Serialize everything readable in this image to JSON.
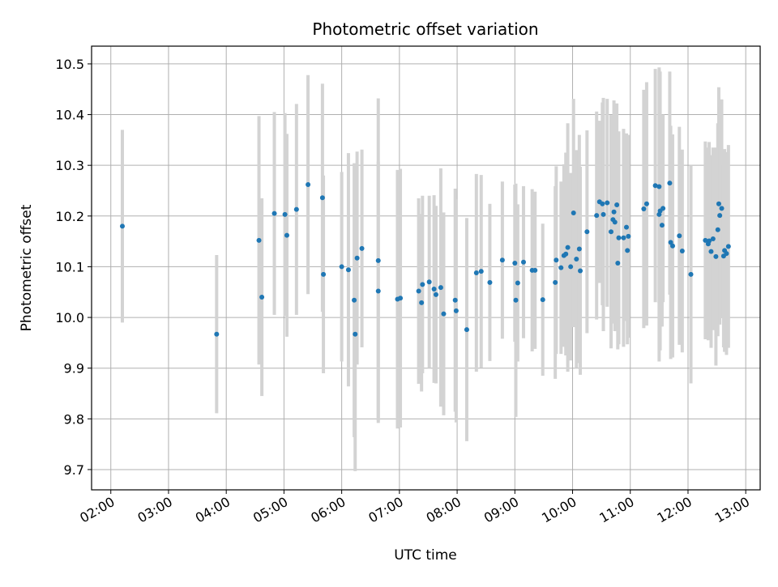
{
  "chart_data": {
    "type": "scatter",
    "title": "Photometric offset variation",
    "xlabel": "UTC time",
    "ylabel": "Photometric offset",
    "xlim": [
      "01:40",
      "13:15"
    ],
    "ylim": [
      9.66,
      10.535
    ],
    "grid": true,
    "x_tick_labels": [
      "02:00",
      "03:00",
      "04:00",
      "05:00",
      "06:00",
      "07:00",
      "08:00",
      "09:00",
      "10:00",
      "11:00",
      "12:00",
      "13:00"
    ],
    "y_tick_labels": [
      "9.7",
      "9.8",
      "9.9",
      "10.0",
      "10.1",
      "10.2",
      "10.3",
      "10.4",
      "10.5"
    ],
    "colors": {
      "points": "#1f77b4",
      "error_bars": "#d3d3d3",
      "grid": "#b0b0b0"
    },
    "series": [
      {
        "x": [
          "02:12",
          "03:50",
          "04:34",
          "04:37",
          "04:50",
          "05:01",
          "05:03",
          "05:13",
          "05:25",
          "05:40",
          "05:41",
          "06:00",
          "06:07",
          "06:13",
          "06:14",
          "06:16",
          "06:21",
          "06:38",
          "06:38",
          "06:58",
          "07:01",
          "07:20",
          "07:23",
          "07:24",
          "07:31",
          "07:36",
          "07:38",
          "07:43",
          "07:46",
          "07:58",
          "07:59",
          "08:10",
          "08:20",
          "08:25",
          "08:34",
          "08:47",
          "09:00",
          "09:01",
          "09:03",
          "09:09",
          "09:18",
          "09:21",
          "09:29",
          "09:42",
          "09:43",
          "09:48",
          "09:51",
          "09:53",
          "09:55",
          "09:58",
          "10:01",
          "10:04",
          "10:07",
          "10:08",
          "10:15",
          "10:25",
          "10:28",
          "10:31",
          "10:32",
          "10:36",
          "10:40",
          "10:42",
          "10:43",
          "10:44",
          "10:46",
          "10:47",
          "10:48",
          "10:53",
          "10:56",
          "10:57",
          "10:58",
          "11:14",
          "11:17",
          "11:26",
          "11:30",
          "11:30",
          "11:31",
          "11:33",
          "11:34",
          "11:41",
          "11:42",
          "11:44",
          "11:51",
          "11:54",
          "12:03",
          "12:18",
          "12:21",
          "12:22",
          "12:24",
          "12:26",
          "12:29",
          "12:31",
          "12:32",
          "12:33",
          "12:35",
          "12:37",
          "12:38",
          "12:40",
          "12:42"
        ],
        "y": [
          10.18,
          9.967,
          10.152,
          10.04,
          10.205,
          10.203,
          10.162,
          10.213,
          10.262,
          10.236,
          10.085,
          10.1,
          10.094,
          10.034,
          9.967,
          10.117,
          10.136,
          10.112,
          10.052,
          10.036,
          10.038,
          10.052,
          10.029,
          10.065,
          10.07,
          10.056,
          10.045,
          10.059,
          10.007,
          10.034,
          10.013,
          9.976,
          10.088,
          10.091,
          10.069,
          10.113,
          10.107,
          10.034,
          10.068,
          10.109,
          10.093,
          10.093,
          10.035,
          10.069,
          10.113,
          10.098,
          10.122,
          10.125,
          10.138,
          10.1,
          10.206,
          10.115,
          10.135,
          10.092,
          10.169,
          10.201,
          10.228,
          10.224,
          10.203,
          10.226,
          10.169,
          10.193,
          10.208,
          10.188,
          10.222,
          10.107,
          10.157,
          10.157,
          10.178,
          10.132,
          10.16,
          10.214,
          10.224,
          10.26,
          10.203,
          10.258,
          10.21,
          10.182,
          10.215,
          10.265,
          10.148,
          10.141,
          10.161,
          10.131,
          10.085,
          10.152,
          10.145,
          10.151,
          10.13,
          10.155,
          10.12,
          10.173,
          10.224,
          10.201,
          10.215,
          10.121,
          10.132,
          10.126,
          10.14
        ],
        "err": [
          0.19,
          0.156,
          0.245,
          0.195,
          0.2,
          0.2,
          0.2,
          0.208,
          0.216,
          0.225,
          0.195,
          0.187,
          0.23,
          0.27,
          0.27,
          0.21,
          0.195,
          0.32,
          0.255,
          0.255,
          0.255,
          0.183,
          0.175,
          0.175,
          0.17,
          0.185,
          0.175,
          0.235,
          0.2,
          0.22,
          0.22,
          0.22,
          0.195,
          0.19,
          0.155,
          0.155,
          0.155,
          0.23,
          0.155,
          0.15,
          0.16,
          0.155,
          0.15,
          0.19,
          0.185,
          0.17,
          0.18,
          0.2,
          0.245,
          0.185,
          0.225,
          0.215,
          0.225,
          0.205,
          0.2,
          0.205,
          0.16,
          0.2,
          0.23,
          0.205,
          0.23,
          0.17,
          0.22,
          0.215,
          0.2,
          0.17,
          0.21,
          0.215,
          0.185,
          0.185,
          0.2,
          0.235,
          0.24,
          0.23,
          0.29,
          0.23,
          0.275,
          0.2,
          0.185,
          0.22,
          0.23,
          0.22,
          0.215,
          0.2,
          0.215,
          0.195,
          0.19,
          0.195,
          0.19,
          0.18,
          0.215,
          0.21,
          0.23,
          0.215,
          0.215,
          0.18,
          0.2,
          0.2,
          0.2
        ],
        "marker": "point"
      }
    ]
  }
}
